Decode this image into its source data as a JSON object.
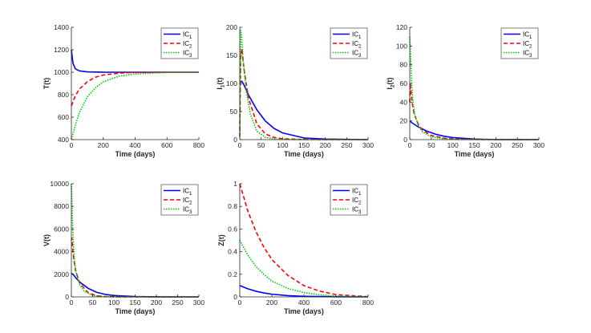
{
  "chart_data": [
    {
      "type": "line",
      "ylabel": "T(t)",
      "xlabel": "Time (days)",
      "xlim": [
        0,
        800
      ],
      "ylim": [
        400,
        1400
      ],
      "xticks": [
        "0",
        "200",
        "400",
        "600",
        "800"
      ],
      "yticks": [
        "400",
        "600",
        "800",
        "1000",
        "1200",
        "1400"
      ],
      "legend_position": "top-right",
      "series": [
        {
          "name": "IC1",
          "color": "#0000ff",
          "dash": "solid",
          "x": [
            0,
            10,
            25,
            50,
            100,
            200,
            400,
            800
          ],
          "y": [
            1200,
            1080,
            1030,
            1012,
            1003,
            1000,
            1000,
            1000
          ]
        },
        {
          "name": "IC2",
          "color": "#ff0000",
          "dash": "dashed",
          "x": [
            0,
            25,
            50,
            100,
            150,
            200,
            300,
            400,
            600,
            800
          ],
          "y": [
            700,
            790,
            850,
            915,
            955,
            975,
            992,
            998,
            1000,
            1000
          ]
        },
        {
          "name": "IC3",
          "color": "#00cc00",
          "dash": "dotted",
          "x": [
            0,
            25,
            50,
            100,
            150,
            200,
            300,
            400,
            600,
            800
          ],
          "y": [
            400,
            530,
            640,
            780,
            860,
            915,
            965,
            985,
            998,
            1000
          ]
        }
      ]
    },
    {
      "type": "line",
      "ylabel": "I1(t)",
      "xlabel": "Time (days)",
      "xlim": [
        0,
        300
      ],
      "ylim": [
        0,
        200
      ],
      "xticks": [
        "0",
        "50",
        "100",
        "150",
        "200",
        "250",
        "300"
      ],
      "yticks": [
        "0",
        "50",
        "100",
        "150",
        "200"
      ],
      "legend_position": "top-right",
      "series": [
        {
          "name": "IC1",
          "color": "#0000ff",
          "dash": "solid",
          "x": [
            0,
            2,
            5,
            10,
            20,
            40,
            60,
            80,
            100,
            150,
            200,
            300
          ],
          "y": [
            100,
            103,
            104,
            97,
            80,
            53,
            33,
            20,
            12,
            3,
            1,
            0
          ]
        },
        {
          "name": "IC2",
          "color": "#ff0000",
          "dash": "dashed",
          "x": [
            0,
            2,
            5,
            10,
            20,
            40,
            60,
            80,
            100,
            150,
            300
          ],
          "y": [
            5,
            150,
            162,
            125,
            75,
            28,
            10,
            4,
            1.5,
            0.2,
            0
          ]
        },
        {
          "name": "IC3",
          "color": "#00cc00",
          "dash": "dotted",
          "x": [
            0,
            2,
            4,
            8,
            15,
            25,
            40,
            60,
            80,
            100,
            150,
            300
          ],
          "y": [
            10,
            195,
            185,
            140,
            88,
            45,
            15,
            4,
            1,
            0.3,
            0,
            0
          ]
        }
      ]
    },
    {
      "type": "line",
      "ylabel": "I2(t)",
      "xlabel": "Time (days)",
      "xlim": [
        0,
        300
      ],
      "ylim": [
        0,
        120
      ],
      "xticks": [
        "0",
        "50",
        "100",
        "150",
        "200",
        "250",
        "300"
      ],
      "yticks": [
        "0",
        "20",
        "40",
        "60",
        "80",
        "100",
        "120"
      ],
      "legend_position": "top-right",
      "series": [
        {
          "name": "IC1",
          "color": "#0000ff",
          "dash": "solid",
          "x": [
            0,
            5,
            10,
            20,
            40,
            60,
            80,
            100,
            150,
            200,
            300
          ],
          "y": [
            20,
            18,
            16.5,
            13.5,
            9,
            5.8,
            3.6,
            2.2,
            0.6,
            0.1,
            0
          ]
        },
        {
          "name": "IC2",
          "color": "#ff0000",
          "dash": "dashed",
          "x": [
            0,
            1,
            3,
            6,
            10,
            20,
            30,
            50,
            80,
            100,
            150,
            300
          ],
          "y": [
            40,
            60,
            50,
            38,
            28,
            16,
            10,
            4.5,
            1.5,
            0.6,
            0.1,
            0
          ]
        },
        {
          "name": "IC3",
          "color": "#00cc00",
          "dash": "dotted",
          "x": [
            0,
            1,
            3,
            5,
            8,
            12,
            20,
            30,
            50,
            80,
            100,
            300
          ],
          "y": [
            110,
            100,
            75,
            55,
            38,
            26,
            15,
            8,
            3,
            0.8,
            0.2,
            0
          ]
        }
      ]
    },
    {
      "type": "line",
      "ylabel": "V(t)",
      "xlabel": "Time (days)",
      "xlim": [
        0,
        300
      ],
      "ylim": [
        0,
        10000
      ],
      "xticks": [
        "0",
        "50",
        "100",
        "150",
        "200",
        "250",
        "300"
      ],
      "yticks": [
        "0",
        "2000",
        "4000",
        "6000",
        "8000",
        "10000"
      ],
      "legend_position": "top-right",
      "series": [
        {
          "name": "IC1",
          "color": "#0000ff",
          "dash": "solid",
          "x": [
            0,
            5,
            10,
            20,
            40,
            60,
            80,
            100,
            150,
            200,
            300
          ],
          "y": [
            2100,
            1950,
            1700,
            1300,
            750,
            400,
            220,
            120,
            30,
            5,
            0
          ]
        },
        {
          "name": "IC2",
          "color": "#ff0000",
          "dash": "dashed",
          "x": [
            0,
            1,
            3,
            6,
            10,
            20,
            40,
            60,
            80,
            100,
            150,
            300
          ],
          "y": [
            5000,
            5200,
            4300,
            3200,
            2300,
            1200,
            350,
            100,
            30,
            10,
            0,
            0
          ]
        },
        {
          "name": "IC3",
          "color": "#00cc00",
          "dash": "dotted",
          "x": [
            0,
            1,
            3,
            5,
            8,
            12,
            20,
            30,
            50,
            80,
            100,
            300
          ],
          "y": [
            10000,
            8800,
            6200,
            4500,
            3000,
            2000,
            1050,
            500,
            120,
            20,
            5,
            0
          ]
        }
      ]
    },
    {
      "type": "line",
      "ylabel": "Z(t)",
      "xlabel": "Time (days)",
      "xlim": [
        0,
        800
      ],
      "ylim": [
        0,
        1
      ],
      "xticks": [
        "0",
        "200",
        "400",
        "600",
        "800"
      ],
      "yticks": [
        "0",
        "0.2",
        "0.4",
        "0.6",
        "0.8",
        "1"
      ],
      "legend_position": "top-right",
      "series": [
        {
          "name": "IC1",
          "color": "#0000ff",
          "dash": "solid",
          "x": [
            0,
            50,
            100,
            150,
            200,
            300,
            400,
            600,
            800
          ],
          "y": [
            0.1,
            0.072,
            0.05,
            0.035,
            0.024,
            0.011,
            0.005,
            0.001,
            0
          ]
        },
        {
          "name": "IC2",
          "color": "#ff0000",
          "dash": "dashed",
          "x": [
            0,
            50,
            100,
            150,
            200,
            300,
            400,
            500,
            600,
            800
          ],
          "y": [
            1.0,
            0.76,
            0.58,
            0.44,
            0.33,
            0.19,
            0.1,
            0.05,
            0.02,
            0.002
          ]
        },
        {
          "name": "IC3",
          "color": "#00cc00",
          "dash": "dotted",
          "x": [
            0,
            50,
            100,
            150,
            200,
            300,
            400,
            500,
            600,
            800
          ],
          "y": [
            0.5,
            0.37,
            0.27,
            0.2,
            0.14,
            0.075,
            0.038,
            0.018,
            0.008,
            0.001
          ]
        }
      ]
    }
  ]
}
